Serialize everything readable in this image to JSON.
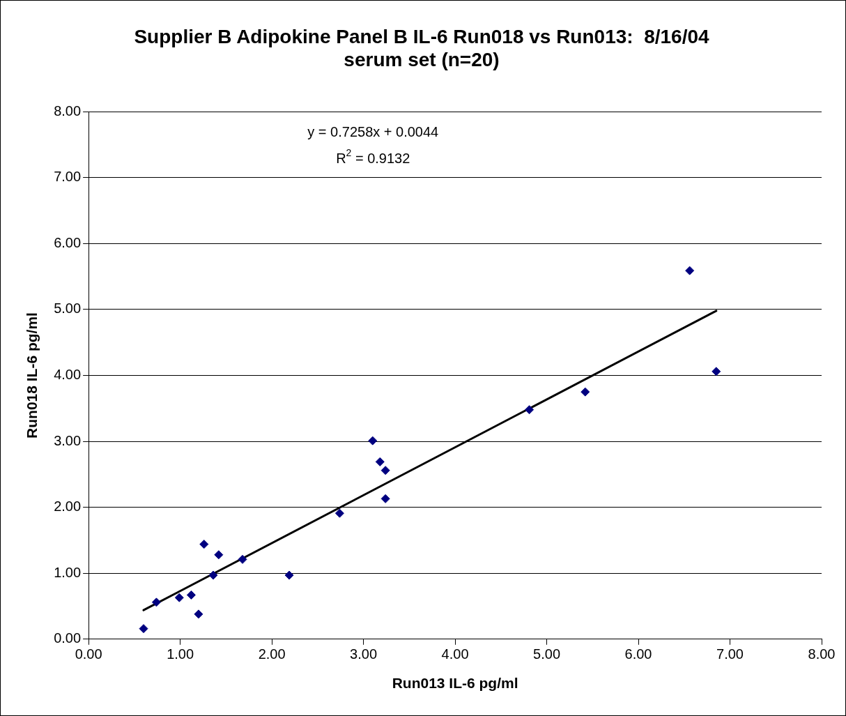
{
  "chart_data": {
    "type": "scatter",
    "title": "Supplier B Adipokine Panel B IL-6 Run018 vs Run013:  8/16/04 serum set (n=20)",
    "xlabel": "Run013 IL-6 pg/ml",
    "ylabel": "Run018 IL-6 pg/ml",
    "annotations": [
      "y = 0.7258x + 0.0044",
      "R$^{2}$ = 0.9132"
    ],
    "xlim": [
      0,
      8
    ],
    "xticks": [
      {
        "value": 0,
        "label": "0.00"
      },
      {
        "value": 1,
        "label": "1.00"
      },
      {
        "value": 2,
        "label": "2.00"
      },
      {
        "value": 3,
        "label": "3.00"
      },
      {
        "value": 4,
        "label": "4.00"
      },
      {
        "value": 5,
        "label": "5.00"
      },
      {
        "value": 6,
        "label": "6.00"
      },
      {
        "value": 7,
        "label": "7.00"
      },
      {
        "value": 8,
        "label": "8.00"
      }
    ],
    "ylim": [
      0,
      8
    ],
    "yticks": [
      {
        "value": 0,
        "label": "0.00"
      },
      {
        "value": 1,
        "label": "1.00"
      },
      {
        "value": 2,
        "label": "2.00"
      },
      {
        "value": 3,
        "label": "3.00"
      },
      {
        "value": 4,
        "label": "4.00"
      },
      {
        "value": 5,
        "label": "5.00"
      },
      {
        "value": 6,
        "label": "6.00"
      },
      {
        "value": 7,
        "label": "7.00"
      },
      {
        "value": 8,
        "label": "8.00"
      }
    ],
    "grid": "y",
    "legend": false,
    "series": [
      {
        "color": "#000080",
        "marker": "diamond",
        "x": [
          0.6,
          0.74,
          0.99,
          1.12,
          1.2,
          1.26,
          1.36,
          1.42,
          1.68,
          2.19,
          2.74,
          3.1,
          3.18,
          3.24,
          3.24,
          4.81,
          5.42,
          6.56,
          6.85
        ],
        "values": [
          0.16,
          0.56,
          0.63,
          0.67,
          0.38,
          1.44,
          0.97,
          1.28,
          1.21,
          0.97,
          1.91,
          3.01,
          2.69,
          2.56,
          2.13,
          3.48,
          3.75,
          5.59,
          4.06
        ]
      },
      {
        "type": "line",
        "color": "#000000",
        "marker": "none",
        "line_style": "solid",
        "x": [
          0.6,
          6.85
        ],
        "values": [
          0.44,
          4.98
        ]
      }
    ]
  }
}
